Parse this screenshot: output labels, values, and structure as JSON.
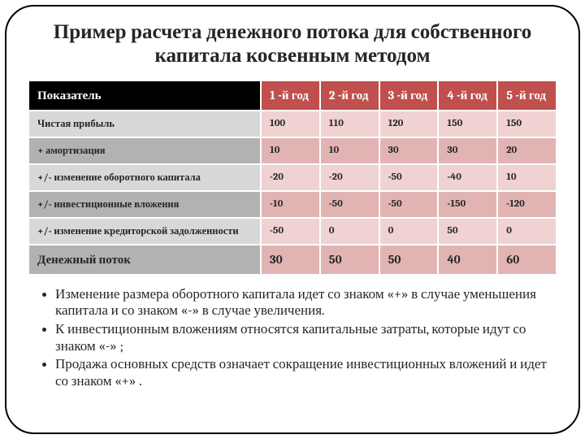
{
  "title": "Пример расчета денежного потока для собственного капитала косвенным методом",
  "table": {
    "columns": [
      "Показатель",
      "1 -й год",
      "2 -й год",
      "3 -й год",
      "4 -й год",
      "5 -й год"
    ],
    "rows": [
      {
        "label": "Чистая прибыль",
        "values": [
          "100",
          "110",
          "120",
          "150",
          "150"
        ]
      },
      {
        "label": "+ амортизация",
        "values": [
          "10",
          "10",
          "30",
          "30",
          "20"
        ]
      },
      {
        "label": "+/- изменение оборотного капитала",
        "values": [
          "-20",
          "-20",
          "-50",
          "-40",
          "10"
        ]
      },
      {
        "label": "+/- инвестиционные вложения",
        "values": [
          "-10",
          "-50",
          "-50",
          "-150",
          "-120"
        ]
      },
      {
        "label": "+/- изменение кредиторской задолженности",
        "values": [
          "-50",
          "0",
          "0",
          "50",
          "0"
        ]
      },
      {
        "label": "Денежный поток",
        "values": [
          "30",
          "50",
          "50",
          "40",
          "60"
        ],
        "summary": true
      }
    ],
    "colors": {
      "header_first_bg": "#000000",
      "header_rest_bg": "#c0504d",
      "header_fg": "#ffffff",
      "odd_first_bg": "#d8d8d8",
      "odd_rest_bg": "#efd2d1",
      "even_first_bg": "#b2b2b2",
      "even_rest_bg": "#e1b4b3",
      "cell_border": "#ffffff"
    },
    "col_widths_pct": [
      44,
      11.2,
      11.2,
      11.2,
      11.2,
      11.2
    ],
    "header_fontsize": 15,
    "body_fontsize": 12.5,
    "summary_fontsize": 15
  },
  "bullets": [
    "Изменение размера оборотного капитала идет со знаком «+» в случае уменьшения капитала и со знаком «-» в случае увеличения.",
    "К инвестиционным вложениям относятся капитальные затраты, которые идут со знаком «-» ;",
    "Продажа основных средств означает сокращение инвестиционных вложений и идет со знаком «+» ."
  ],
  "typography": {
    "title_fontsize": 25,
    "bullet_fontsize": 17,
    "font_family": "Cambria"
  },
  "frame": {
    "border_radius": 36,
    "border_color": "#000000",
    "border_width": 2
  }
}
